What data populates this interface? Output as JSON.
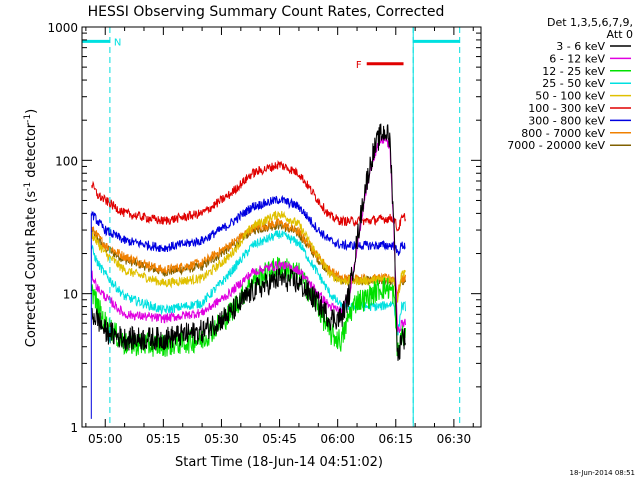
{
  "chart_data": {
    "type": "line",
    "title": "HESSI Observing Summary Count Rates, Corrected",
    "xlabel": "Start Time (18-Jun-14 04:51:02)",
    "ylabel_main": "Corrected Count Rate (s",
    "ylabel_exp1": "-1",
    "ylabel_mid": " detector",
    "ylabel_exp2": "-1",
    "ylabel_end": ")",
    "yscale": "log",
    "ylim": [
      1,
      1000
    ],
    "xlim_minutes": [
      -6.0,
      97.0
    ],
    "x_ticks": [
      {
        "label": "05:00",
        "min": 0
      },
      {
        "label": "05:15",
        "min": 15
      },
      {
        "label": "05:30",
        "min": 30
      },
      {
        "label": "05:45",
        "min": 45
      },
      {
        "label": "06:00",
        "min": 60
      },
      {
        "label": "06:15",
        "min": 75
      },
      {
        "label": "06:30",
        "min": 90
      }
    ],
    "y_ticks": [
      {
        "label": "1",
        "value": 1
      },
      {
        "label": "10",
        "value": 10
      },
      {
        "label": "100",
        "value": 100
      },
      {
        "label": "1000",
        "value": 1000
      }
    ],
    "legend_header1": "Det 1,3,5,6,7,9,",
    "legend_header2": "Att 0",
    "series": [
      {
        "name": "3 - 6 keV",
        "color": "#000000",
        "points": [
          [
            -3.5,
            7
          ],
          [
            -2,
            6.5
          ],
          [
            0,
            5.2
          ],
          [
            5,
            4.6
          ],
          [
            15,
            4.6
          ],
          [
            25,
            5.2
          ],
          [
            32,
            7
          ],
          [
            38,
            10.5
          ],
          [
            45,
            13
          ],
          [
            50,
            12
          ],
          [
            55,
            8.5
          ],
          [
            58,
            6.5
          ],
          [
            61,
            6.6
          ],
          [
            63,
            10
          ],
          [
            65,
            25
          ],
          [
            67,
            60
          ],
          [
            69,
            110
          ],
          [
            71,
            155
          ],
          [
            72.5,
            165
          ],
          [
            73.5,
            140
          ],
          [
            74.5,
            35
          ],
          [
            75.5,
            3
          ],
          [
            76.5,
            5
          ],
          [
            77.5,
            4.5
          ]
        ]
      },
      {
        "name": "6 - 12 keV",
        "color": "#e000e0",
        "points": [
          [
            -3.5,
            14
          ],
          [
            -2,
            11
          ],
          [
            0,
            9.5
          ],
          [
            5,
            7
          ],
          [
            15,
            6.5
          ],
          [
            25,
            7.2
          ],
          [
            32,
            10
          ],
          [
            38,
            14.5
          ],
          [
            45,
            16.5
          ],
          [
            50,
            15
          ],
          [
            55,
            10
          ],
          [
            58,
            8
          ],
          [
            61,
            7.4
          ],
          [
            63,
            10
          ],
          [
            65,
            22
          ],
          [
            67,
            52
          ],
          [
            69,
            100
          ],
          [
            71,
            140
          ],
          [
            72.5,
            145
          ],
          [
            73.5,
            120
          ],
          [
            74.5,
            30
          ],
          [
            75.5,
            5
          ],
          [
            76.5,
            6
          ],
          [
            77.5,
            6
          ]
        ]
      },
      {
        "name": "12 - 25 keV",
        "color": "#00e000",
        "points": [
          [
            -3.5,
            11
          ],
          [
            -2,
            8
          ],
          [
            0,
            6
          ],
          [
            5,
            4.2
          ],
          [
            15,
            4.1
          ],
          [
            25,
            4.5
          ],
          [
            32,
            7
          ],
          [
            38,
            12.5
          ],
          [
            45,
            16
          ],
          [
            50,
            14
          ],
          [
            55,
            8
          ],
          [
            58,
            5
          ],
          [
            61,
            4.4
          ],
          [
            63,
            7
          ],
          [
            65,
            9
          ],
          [
            67,
            9
          ],
          [
            69,
            10
          ],
          [
            71,
            11
          ],
          [
            73,
            11
          ],
          [
            74.5,
            10
          ],
          [
            75.5,
            3.5
          ],
          [
            76.5,
            5
          ],
          [
            77.5,
            4.5
          ]
        ]
      },
      {
        "name": "25 - 50 keV",
        "color": "#00e0e0",
        "points": [
          [
            -3.5,
            22
          ],
          [
            -2,
            17
          ],
          [
            0,
            14
          ],
          [
            5,
            9.5
          ],
          [
            15,
            7.5
          ],
          [
            25,
            8.5
          ],
          [
            32,
            14
          ],
          [
            38,
            23
          ],
          [
            45,
            28
          ],
          [
            50,
            24
          ],
          [
            55,
            14
          ],
          [
            58,
            10
          ],
          [
            61,
            8
          ],
          [
            63,
            8
          ],
          [
            67,
            8
          ],
          [
            71,
            8
          ],
          [
            74.5,
            8.5
          ],
          [
            75.5,
            5
          ],
          [
            76.5,
            8
          ],
          [
            77.5,
            8
          ]
        ]
      },
      {
        "name": "50 - 100 keV",
        "color": "#e0c000",
        "points": [
          [
            -3.5,
            28
          ],
          [
            -2,
            24
          ],
          [
            0,
            20
          ],
          [
            5,
            15
          ],
          [
            15,
            12
          ],
          [
            25,
            13
          ],
          [
            32,
            19
          ],
          [
            38,
            32
          ],
          [
            45,
            40
          ],
          [
            50,
            33
          ],
          [
            55,
            19
          ],
          [
            58,
            14
          ],
          [
            61,
            12.5
          ],
          [
            67,
            12.5
          ],
          [
            74.5,
            13
          ],
          [
            75.5,
            9
          ],
          [
            76.5,
            14
          ],
          [
            77.5,
            15
          ]
        ]
      },
      {
        "name": "100 - 300 keV",
        "color": "#e00000",
        "points": [
          [
            -3.5,
            66
          ],
          [
            -2,
            55
          ],
          [
            0,
            50
          ],
          [
            5,
            40
          ],
          [
            15,
            35
          ],
          [
            25,
            40
          ],
          [
            32,
            55
          ],
          [
            38,
            80
          ],
          [
            45,
            93
          ],
          [
            50,
            80
          ],
          [
            55,
            50
          ],
          [
            58,
            38
          ],
          [
            61,
            35
          ],
          [
            67,
            35
          ],
          [
            74.5,
            37
          ],
          [
            75.5,
            30
          ],
          [
            76.5,
            36
          ],
          [
            77.5,
            38
          ]
        ]
      },
      {
        "name": "300 - 800 keV",
        "color": "#0000e0",
        "points": [
          [
            -3.5,
            40
          ],
          [
            -2,
            35
          ],
          [
            0,
            30
          ],
          [
            5,
            25
          ],
          [
            15,
            22
          ],
          [
            25,
            25
          ],
          [
            32,
            33
          ],
          [
            38,
            45
          ],
          [
            45,
            51
          ],
          [
            50,
            45
          ],
          [
            55,
            30
          ],
          [
            58,
            25
          ],
          [
            61,
            23
          ],
          [
            67,
            23
          ],
          [
            74.5,
            23
          ],
          [
            75.5,
            20
          ],
          [
            76.5,
            23
          ],
          [
            77.5,
            23
          ]
        ]
      },
      {
        "name": "800 - 7000 keV",
        "color": "#f08000",
        "points": [
          [
            -3.5,
            31
          ],
          [
            -2,
            27
          ],
          [
            0,
            23
          ],
          [
            5,
            19
          ],
          [
            15,
            15
          ],
          [
            25,
            17
          ],
          [
            32,
            23
          ],
          [
            38,
            31
          ],
          [
            45,
            34
          ],
          [
            50,
            29
          ],
          [
            55,
            19
          ],
          [
            58,
            15
          ],
          [
            61,
            13
          ],
          [
            67,
            13
          ],
          [
            74.5,
            13
          ],
          [
            75.5,
            10
          ],
          [
            76.5,
            13
          ],
          [
            77.5,
            13
          ]
        ]
      },
      {
        "name": "7000 - 20000 keV",
        "color": "#806000",
        "points": [
          [
            -3.5,
            30
          ],
          [
            -2,
            26
          ],
          [
            0,
            22
          ],
          [
            5,
            18
          ],
          [
            15,
            14.5
          ],
          [
            25,
            16
          ],
          [
            32,
            22
          ],
          [
            38,
            30
          ],
          [
            45,
            33
          ],
          [
            50,
            28
          ],
          [
            55,
            18
          ],
          [
            58,
            14.5
          ],
          [
            61,
            12.5
          ],
          [
            67,
            12.5
          ],
          [
            74.5,
            12.5
          ],
          [
            75.5,
            9.5
          ],
          [
            76.5,
            12.5
          ],
          [
            77.5,
            12.5
          ]
        ]
      }
    ],
    "annotations": {
      "night_label": "N",
      "flare_label": "F",
      "night_segments": [
        [
          -6,
          1.2
        ],
        [
          79.5,
          91.5
        ]
      ],
      "night_boundaries": [
        1.2,
        79.5,
        91.5
      ],
      "flare_span": [
        67.5,
        77
      ],
      "night_level": 780,
      "flare_level": 530
    },
    "timestamp": "18-Jun-2014 08:51"
  }
}
